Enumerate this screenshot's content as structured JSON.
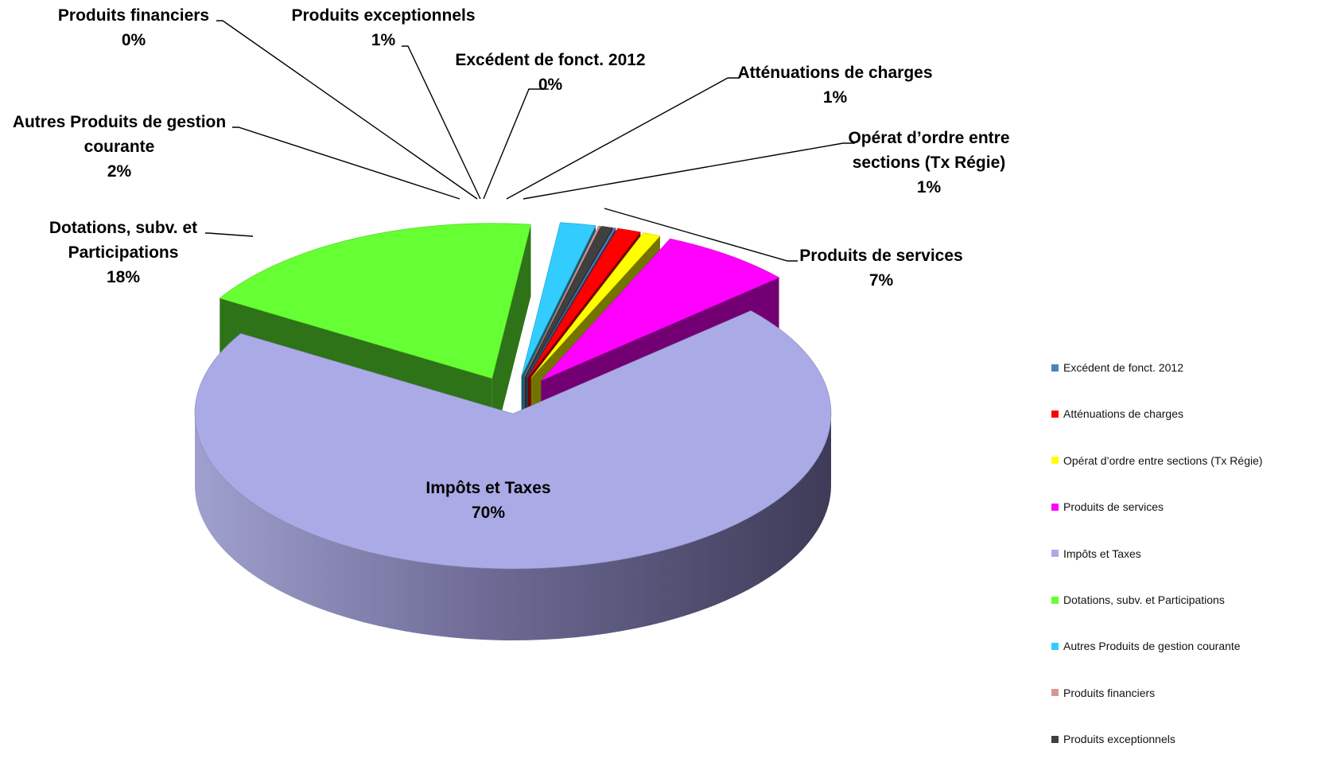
{
  "chart_data": {
    "type": "pie",
    "title": "",
    "slices": [
      {
        "label": "Excédent de fonct. 2012",
        "pct_label": "0%",
        "value": 0.1,
        "color": "#4F81BD",
        "callout": [
          "Excédent de fonct. 2012"
        ]
      },
      {
        "label": "Atténuations de charges",
        "pct_label": "1%",
        "value": 1.2,
        "color": "#FF0000",
        "callout": [
          "Atténuations de charges"
        ]
      },
      {
        "label": "Opérat d’ordre entre sections (Tx Régie)",
        "pct_label": "1%",
        "value": 0.9,
        "color": "#FFFF00",
        "callout": [
          "Opérat d’ordre entre",
          "sections (Tx Régie)"
        ]
      },
      {
        "label": "Produits de services",
        "pct_label": "7%",
        "value": 6.8,
        "color": "#FF00FF",
        "callout": [
          "Produits de services"
        ]
      },
      {
        "label": "Impôts et Taxes",
        "pct_label": "70%",
        "value": 70.2,
        "color": "#AAAAE6",
        "callout": [
          "Impôts et Taxes"
        ]
      },
      {
        "label": "Dotations, subv. et Participations",
        "pct_label": "18%",
        "value": 18.3,
        "color": "#66FF33",
        "callout": [
          "Dotations, subv. et",
          "Participations"
        ]
      },
      {
        "label": "Autres Produits de gestion courante",
        "pct_label": "2%",
        "value": 1.8,
        "color": "#33CCFF",
        "callout": [
          "Autres Produits de gestion",
          "courante"
        ]
      },
      {
        "label": "Produits financiers",
        "pct_label": "0%",
        "value": 0.1,
        "color": "#D99694",
        "callout": [
          "Produits financiers"
        ]
      },
      {
        "label": "Produits exceptionnels",
        "pct_label": "1%",
        "value": 0.6,
        "color": "#404040",
        "callout": [
          "Produits exceptionnels"
        ]
      }
    ],
    "legend_placement": "right",
    "style": "3d-exploded"
  }
}
